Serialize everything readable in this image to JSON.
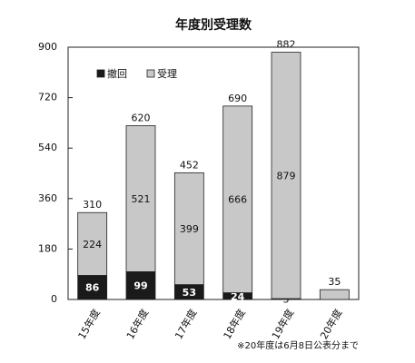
{
  "chart_data": {
    "type": "stacked_bar",
    "title": "年度別受理数",
    "categories": [
      "15年度",
      "16年度",
      "17年度",
      "18年度",
      "19年度",
      "20年度"
    ],
    "series": [
      {
        "name": "撤回",
        "color": "#1a1a1a",
        "values": [
          86,
          99,
          53,
          24,
          3,
          null
        ],
        "value_labels": [
          "86",
          "99",
          "53",
          "24",
          "3",
          null
        ]
      },
      {
        "name": "受理",
        "color": "#c8c8c8",
        "values": [
          224,
          521,
          399,
          666,
          879,
          35
        ],
        "value_labels": [
          "224",
          "521",
          "399",
          "666",
          "879",
          null
        ]
      }
    ],
    "totals": [
      310,
      620,
      452,
      690,
      882,
      35
    ],
    "ylim": [
      0,
      900
    ],
    "yticks": [
      0,
      180,
      360,
      540,
      720,
      900
    ],
    "legend": "upper left",
    "note": "※20年度は6月8日公表分まで"
  }
}
